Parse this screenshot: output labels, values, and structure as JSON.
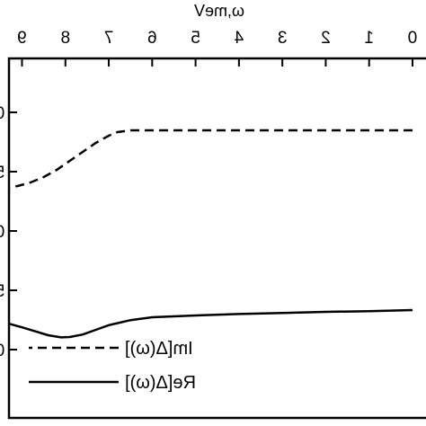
{
  "chart_data": {
    "type": "line",
    "orientation_note": "image is mirrored horizontally",
    "xlabel": "ω,meV",
    "ylabel": "",
    "xlim": [
      0,
      9.3
    ],
    "ylim": [
      0,
      1
    ],
    "x_ticks": [
      0,
      1,
      2,
      3,
      4,
      5,
      6,
      7,
      8,
      9
    ],
    "x_tick_labels": [
      "0",
      "1",
      "2",
      "3",
      "4",
      "5",
      "6",
      "7",
      "8",
      "9"
    ],
    "y_tick_labels_visible": [
      "0",
      "5",
      "0",
      "5",
      "0"
    ],
    "legend_position": "bottom-left",
    "series": [
      {
        "name": "Im[Δ(ω)]",
        "style": "dashed",
        "color": "#000000",
        "x": [
          0,
          1,
          2,
          3,
          4,
          5,
          6,
          6.5,
          6.8,
          7.0,
          7.3,
          7.6,
          7.9,
          8.2,
          8.5,
          8.8,
          9.1,
          9.3
        ],
        "y": [
          0.8,
          0.8,
          0.8,
          0.8,
          0.8,
          0.8,
          0.8,
          0.8,
          0.795,
          0.785,
          0.765,
          0.74,
          0.715,
          0.69,
          0.67,
          0.655,
          0.645,
          0.642
        ]
      },
      {
        "name": "Re[Δ(ω)]",
        "style": "solid",
        "color": "#000000",
        "x": [
          0,
          1,
          2,
          3,
          4,
          5,
          6,
          6.5,
          7.0,
          7.3,
          7.6,
          7.9,
          8.1,
          8.4,
          8.7,
          9.0,
          9.3
        ],
        "y": [
          0.3,
          0.297,
          0.295,
          0.292,
          0.289,
          0.285,
          0.28,
          0.272,
          0.258,
          0.245,
          0.232,
          0.225,
          0.224,
          0.23,
          0.241,
          0.252,
          0.262
        ]
      }
    ]
  },
  "legend": {
    "items": [
      {
        "label": "Im[Δ(ω)]",
        "style": "dashed"
      },
      {
        "label": "Re[Δ(ω)]",
        "style": "solid"
      }
    ]
  }
}
